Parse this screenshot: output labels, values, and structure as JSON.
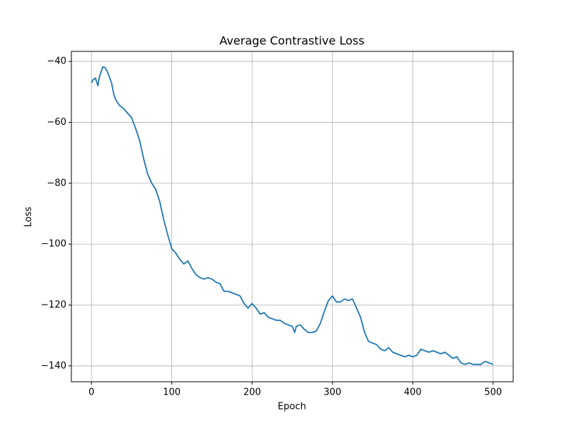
{
  "chart_data": {
    "type": "line",
    "title": "Average Contrastive Loss",
    "x_label": "Epoch",
    "y_label": "Loss",
    "x": [
      0,
      2,
      5,
      8,
      10,
      14,
      17,
      20,
      25,
      28,
      30,
      35,
      40,
      45,
      50,
      55,
      60,
      65,
      70,
      75,
      80,
      85,
      90,
      95,
      100,
      105,
      110,
      115,
      120,
      125,
      130,
      135,
      140,
      145,
      150,
      155,
      160,
      165,
      170,
      175,
      180,
      185,
      190,
      195,
      200,
      205,
      210,
      215,
      220,
      225,
      230,
      235,
      240,
      245,
      250,
      253,
      255,
      260,
      265,
      270,
      275,
      280,
      285,
      290,
      295,
      300,
      305,
      310,
      315,
      320,
      325,
      330,
      335,
      340,
      345,
      350,
      355,
      360,
      365,
      370,
      375,
      380,
      385,
      390,
      395,
      400,
      405,
      410,
      415,
      420,
      425,
      430,
      435,
      440,
      445,
      450,
      455,
      460,
      465,
      470,
      475,
      480,
      485,
      490,
      495,
      500
    ],
    "series": [
      {
        "name": "Loss",
        "color": "#1f77b4",
        "values": [
          -47,
          -46,
          -45.5,
          -48,
          -45,
          -41.8,
          -42,
          -43.5,
          -47,
          -51,
          -52.5,
          -54.5,
          -55.5,
          -57,
          -58.5,
          -62,
          -66,
          -72,
          -77,
          -80,
          -82,
          -86,
          -92,
          -97,
          -101.5,
          -103,
          -105,
          -106.5,
          -105.5,
          -108,
          -110,
          -111,
          -111.5,
          -111,
          -111.5,
          -112.5,
          -113,
          -115.5,
          -115.5,
          -116,
          -116.5,
          -117,
          -119.5,
          -121,
          -119.5,
          -121,
          -123,
          -122.5,
          -124,
          -124.5,
          -125,
          -125,
          -126,
          -126.5,
          -127,
          -129,
          -127,
          -126.5,
          -128,
          -129,
          -129,
          -128.5,
          -126,
          -122,
          -118.5,
          -117,
          -119,
          -119,
          -118,
          -118.5,
          -118,
          -121,
          -124,
          -129,
          -132,
          -132.5,
          -133,
          -134.5,
          -135,
          -134,
          -135.5,
          -136,
          -136.5,
          -137,
          -136.5,
          -137,
          -136.5,
          -134.5,
          -135,
          -135.5,
          -135,
          -135.5,
          -136,
          -135.5,
          -136.5,
          -137.5,
          -137,
          -139,
          -139.5,
          -139,
          -139.5,
          -139.5,
          -139.5,
          -138.5,
          -139,
          -139.5
        ]
      }
    ],
    "xlim": [
      -25,
      525
    ],
    "ylim": [
      -145.2,
      -36.7
    ],
    "xticks": [
      0,
      100,
      200,
      300,
      400,
      500
    ],
    "yticks": [
      {
        "value": -140,
        "label": "−140"
      },
      {
        "value": -120,
        "label": "−120"
      },
      {
        "value": -100,
        "label": "−100"
      },
      {
        "value": -80,
        "label": "−80"
      },
      {
        "value": -60,
        "label": "−60"
      },
      {
        "value": -40,
        "label": "−40"
      }
    ],
    "grid": true
  }
}
